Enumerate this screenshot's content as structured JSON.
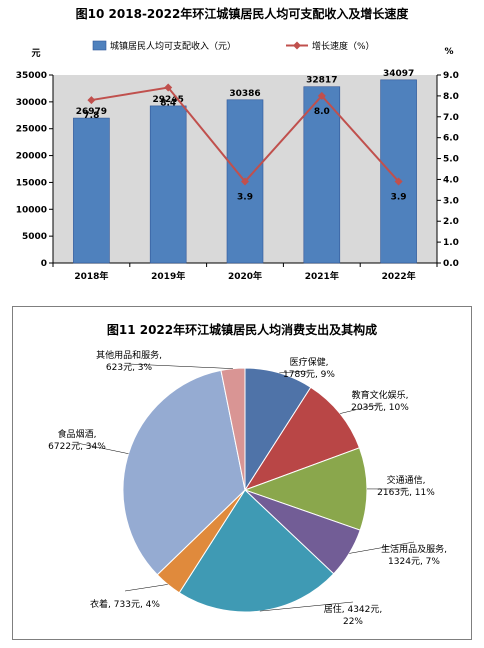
{
  "chart_data": [
    {
      "type": "bar",
      "title": "图10  2018-2022年环江城镇居民人均可支配收入及增长速度",
      "categories": [
        "2018年",
        "2019年",
        "2020年",
        "2021年",
        "2022年"
      ],
      "left_axis_unit": "元",
      "right_axis_unit": "%",
      "ylim_left": [
        0,
        35000
      ],
      "ylim_right": [
        0.0,
        9.0
      ],
      "left_ticks": [
        "0",
        "5000",
        "10000",
        "15000",
        "20000",
        "25000",
        "30000",
        "35000"
      ],
      "right_ticks": [
        "0.0",
        "1.0",
        "2.0",
        "3.0",
        "4.0",
        "5.0",
        "6.0",
        "7.0",
        "8.0",
        "9.0"
      ],
      "series": [
        {
          "name": "城镇居民人均可支配收入（元）",
          "kind": "bar",
          "color": "#4f81bd",
          "values": [
            26979,
            29245,
            30386,
            32817,
            34097
          ],
          "labels": [
            "26979",
            "29245",
            "30386",
            "32817",
            "34097"
          ]
        },
        {
          "name": "增长速度（%）",
          "kind": "line",
          "color": "#c0504d",
          "values": [
            7.8,
            8.4,
            3.9,
            8.0,
            3.9
          ],
          "labels": [
            "7.8",
            "8.4",
            "3.9",
            "8.0",
            "3.9"
          ]
        }
      ],
      "legend_position": "top",
      "plot_background": "#d9d9d9"
    },
    {
      "type": "pie",
      "title": "图11  2022年环江城镇居民人均消费支出及其构成",
      "slices": [
        {
          "name": "医疗保健",
          "value": 1789,
          "percent": 9,
          "label_line1": "医疗保健,",
          "label_line2": "1789元, 9%",
          "color": "#4f73a8"
        },
        {
          "name": "教育文化娱乐",
          "value": 2035,
          "percent": 10,
          "label_line1": "教育文化娱乐,",
          "label_line2": "2035元, 10%",
          "color": "#b94646"
        },
        {
          "name": "交通通信",
          "value": 2163,
          "percent": 11,
          "label_line1": "交通通信,",
          "label_line2": "2163元, 11%",
          "color": "#8aa74c"
        },
        {
          "name": "生活用品及服务",
          "value": 1324,
          "percent": 7,
          "label_line1": "生活用品及服务,",
          "label_line2": "1324元, 7%",
          "color": "#725d96"
        },
        {
          "name": "居住",
          "value": 4342,
          "percent": 22,
          "label_line1": "居住, 4342元,",
          "label_line2": "22%",
          "color": "#3f9ab4"
        },
        {
          "name": "衣着",
          "value": 733,
          "percent": 4,
          "label_line1": "衣着, 733元, 4%",
          "label_line2": "",
          "color": "#e08a3c"
        },
        {
          "name": "食品烟酒",
          "value": 6722,
          "percent": 34,
          "label_line1": "食品烟酒,",
          "label_line2": "6722元, 34%",
          "color": "#95abd2"
        },
        {
          "name": "其他用品和服务",
          "value": 623,
          "percent": 3,
          "label_line1": "其他用品和服务,",
          "label_line2": "623元, 3%",
          "color": "#d99594"
        }
      ]
    }
  ]
}
